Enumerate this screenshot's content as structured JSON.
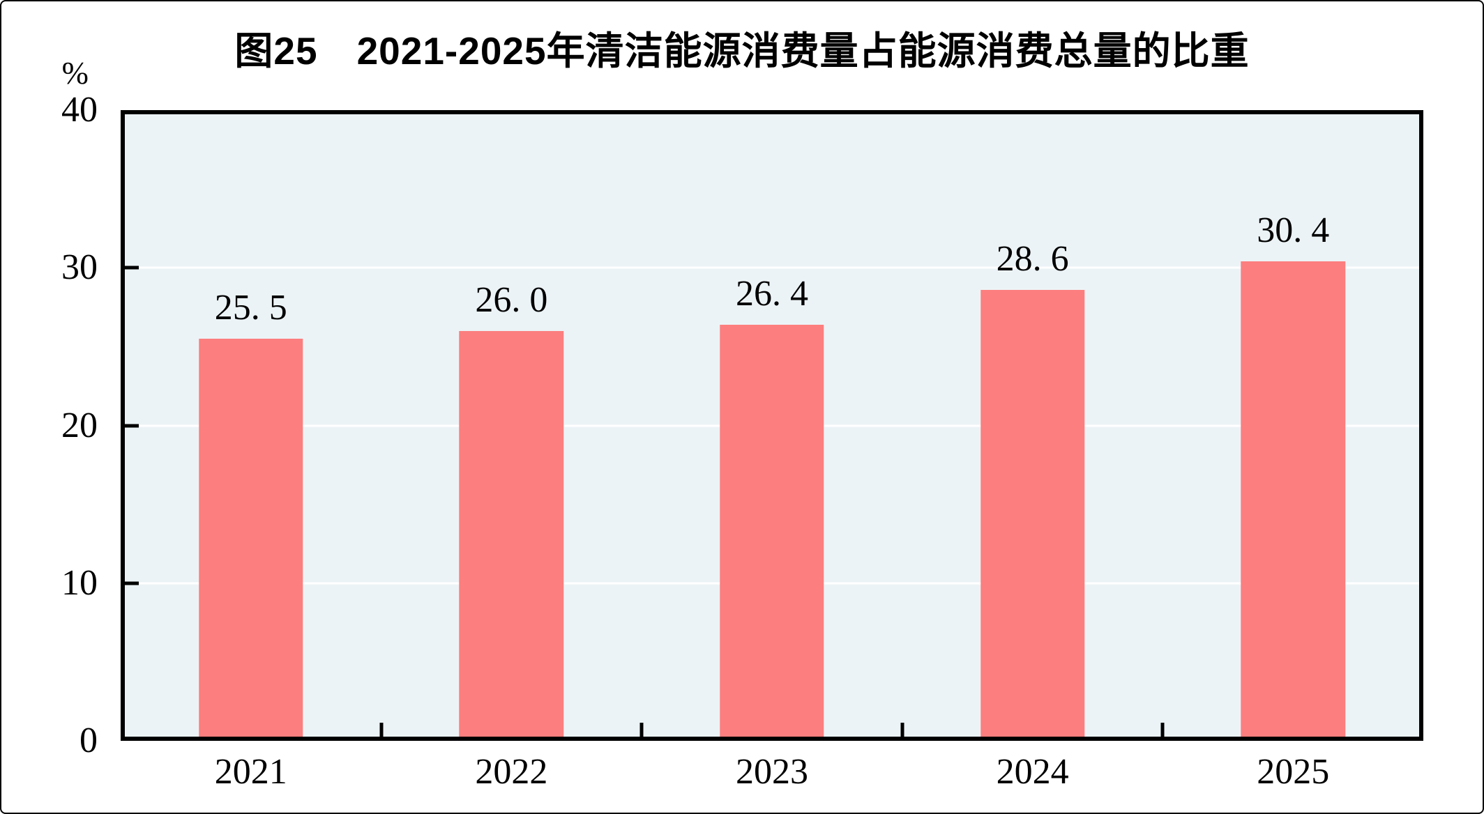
{
  "page": {
    "background": "#FFFFFF",
    "outer_border_color": "#000000"
  },
  "chart_data": {
    "type": "bar",
    "title": "图25　2021-2025年清洁能源消费量占能源消费总量的比重",
    "unit_label": "%",
    "xlabel": "",
    "ylabel": "%",
    "categories": [
      "2021",
      "2022",
      "2023",
      "2024",
      "2025"
    ],
    "values": [
      25.5,
      26.0,
      26.4,
      28.6,
      30.4
    ],
    "value_labels": [
      "25. 5",
      "26. 0",
      "26. 4",
      "28. 6",
      "30. 4"
    ],
    "ylim": [
      0,
      40
    ],
    "yticks": [
      0,
      10,
      20,
      30,
      40
    ],
    "ytick_labels": [
      "0",
      "10",
      "20",
      "30",
      "40"
    ],
    "gridline_values": [
      10,
      20,
      30
    ],
    "grid": true,
    "legend_position": "none",
    "bar_color": "#FC7E7E",
    "plot_background": "#ECF3F6",
    "gridline_color": "#FFFFFF",
    "axis_color": "#000000",
    "text_color": "#000000"
  }
}
